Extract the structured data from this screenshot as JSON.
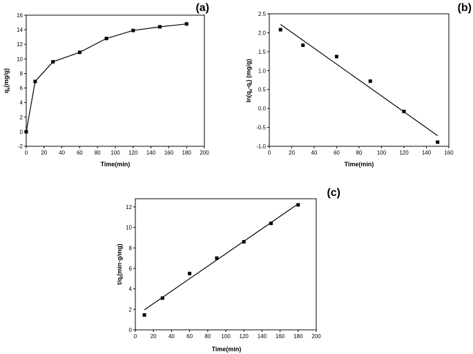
{
  "chart_data": [
    {
      "panel_label": "(a)",
      "type": "line",
      "xlabel": "Time(min)",
      "ylabel": {
        "main": "q",
        "sub": "e",
        "rest": "(mg/g)"
      },
      "xlim": [
        0,
        200
      ],
      "ylim": [
        -2,
        16
      ],
      "xticks": [
        0,
        20,
        40,
        60,
        80,
        100,
        120,
        140,
        160,
        180,
        200
      ],
      "yticks": [
        -2,
        0,
        2,
        4,
        6,
        8,
        10,
        12,
        14,
        16
      ],
      "series": [
        {
          "points": [
            [
              0,
              0
            ],
            [
              10,
              6.9
            ],
            [
              30,
              9.6
            ],
            [
              60,
              10.9
            ],
            [
              90,
              12.8
            ],
            [
              120,
              13.9
            ],
            [
              150,
              14.4
            ],
            [
              180,
              14.8
            ]
          ]
        }
      ]
    },
    {
      "panel_label": "(b)",
      "type": "scatter",
      "xlabel": "Time(min)",
      "ylabel": {
        "main": "ln(q",
        "sub1": "e",
        "mid": "-q",
        "sub2": "t",
        "rest": ") (mg/g)"
      },
      "xlim": [
        0,
        160
      ],
      "ylim": [
        -1.0,
        2.5
      ],
      "xticks": [
        0,
        20,
        40,
        60,
        80,
        100,
        120,
        140,
        160
      ],
      "yticks": [
        "-1.0",
        "-0.5",
        "0.0",
        "0.5",
        "1.0",
        "1.5",
        "2.0",
        "2.5"
      ],
      "points": [
        [
          10,
          2.08
        ],
        [
          30,
          1.67
        ],
        [
          60,
          1.37
        ],
        [
          90,
          0.72
        ],
        [
          120,
          -0.08
        ],
        [
          150,
          -0.89
        ]
      ],
      "fit_line": [
        [
          10,
          2.22
        ],
        [
          150,
          -0.72
        ]
      ]
    },
    {
      "panel_label": "(c)",
      "type": "scatter",
      "xlabel": "Time(min)",
      "ylabel": {
        "main": "t/q",
        "sub": "t",
        "rest": "(min·g/mg)"
      },
      "xlim": [
        0,
        200
      ],
      "ylim": [
        0,
        12.8
      ],
      "xticks": [
        0,
        20,
        40,
        60,
        80,
        100,
        120,
        140,
        160,
        180,
        200
      ],
      "yticks": [
        0,
        2,
        4,
        6,
        8,
        10,
        12
      ],
      "points": [
        [
          10,
          1.45
        ],
        [
          30,
          3.1
        ],
        [
          60,
          5.5
        ],
        [
          90,
          7.0
        ],
        [
          120,
          8.6
        ],
        [
          150,
          10.4
        ],
        [
          180,
          12.2
        ]
      ],
      "fit_line": [
        [
          10,
          1.95
        ],
        [
          180,
          12.3
        ]
      ]
    }
  ]
}
